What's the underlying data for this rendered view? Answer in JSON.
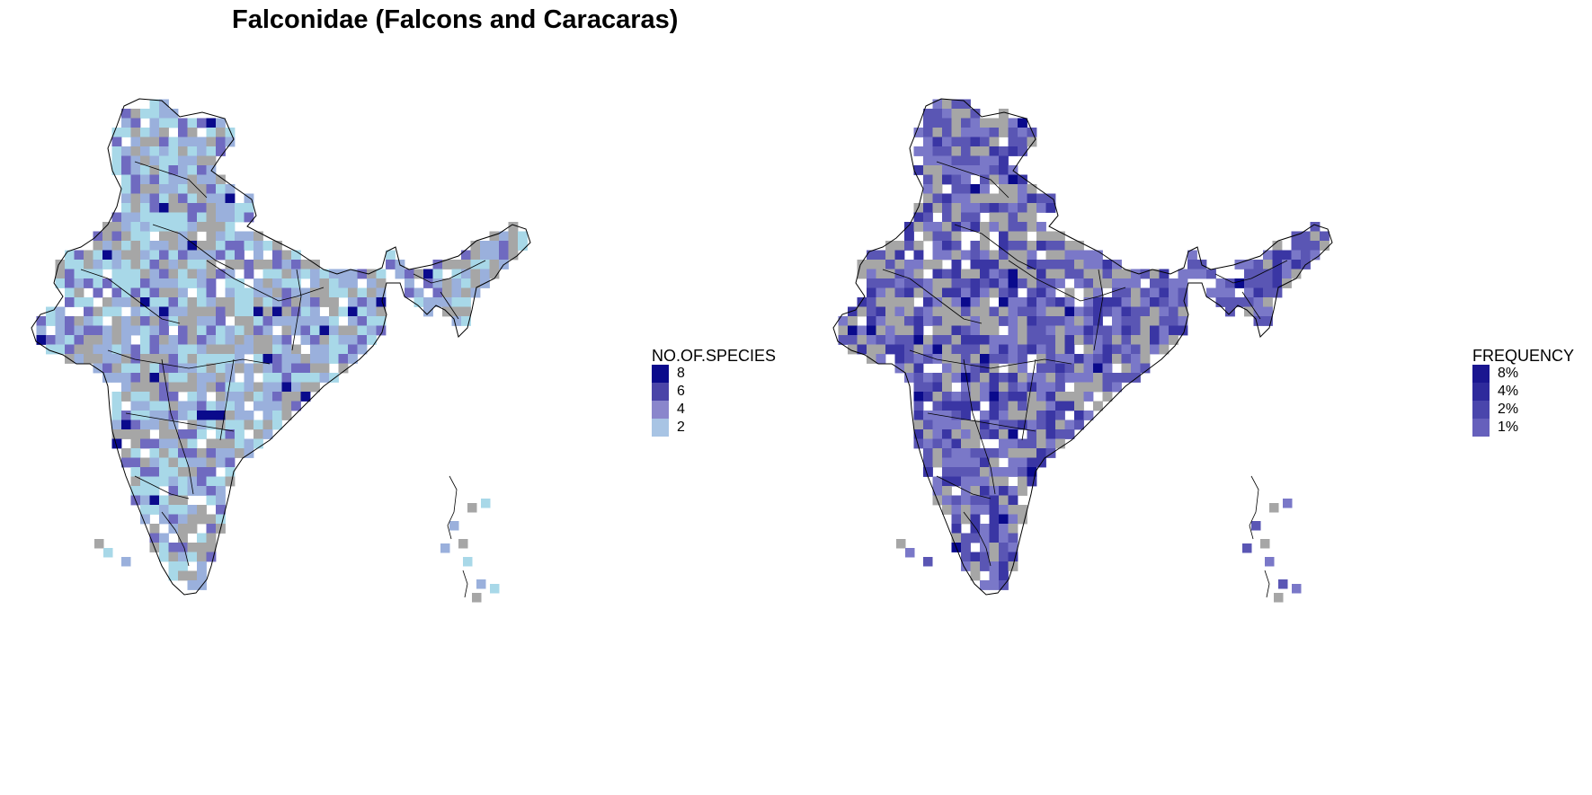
{
  "title": "Falconidae (Falcons and Caracaras)",
  "maps": [
    {
      "id": "species",
      "legend_title": "NO.OF.SPECIES",
      "legend": [
        {
          "label": "8",
          "color": "#0a0a8c"
        },
        {
          "label": "6",
          "color": "#4a44a8"
        },
        {
          "label": "4",
          "color": "#8a86cc"
        },
        {
          "label": "2",
          "color": "#a8c4e4"
        }
      ],
      "palette": {
        "no_data": "#a6a6a6",
        "low": "#a8d8e8",
        "mid": "#9ab0dc",
        "high": "#6f6ac0",
        "top": "#0a0a8c"
      }
    },
    {
      "id": "frequency",
      "legend_title": "FREQUENCY",
      "legend": [
        {
          "label": "8%",
          "color": "#1a1690"
        },
        {
          "label": "4%",
          "color": "#2e2a9c"
        },
        {
          "label": "2%",
          "color": "#4a46ac"
        },
        {
          "label": "1%",
          "color": "#6660bc"
        }
      ],
      "palette": {
        "no_data": "#a6a6a6",
        "low": "#7a78c8",
        "mid": "#5a56b4",
        "high": "#3a36a4",
        "top": "#0a0a8c"
      }
    }
  ]
}
